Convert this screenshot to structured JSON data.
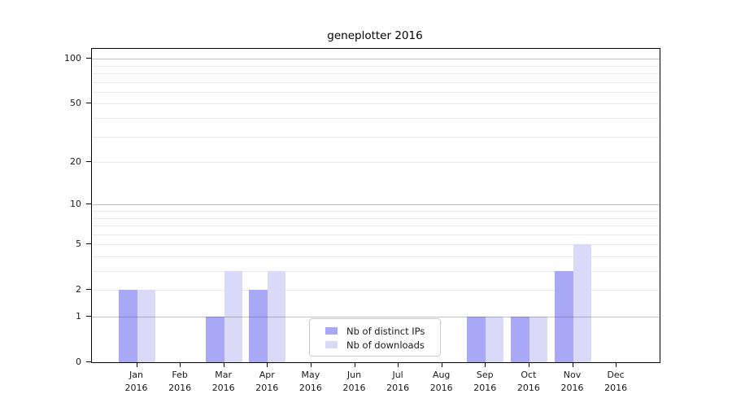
{
  "title": "geneplotter 2016",
  "chart_data": {
    "type": "bar",
    "title": "geneplotter 2016",
    "categories": [
      "Jan",
      "Feb",
      "Mar",
      "Apr",
      "May",
      "Jun",
      "Jul",
      "Aug",
      "Sep",
      "Oct",
      "Nov",
      "Dec"
    ],
    "category_year": "2016",
    "series": [
      {
        "name": "Nb of distinct IPs",
        "color": "#a8a8f6",
        "values": [
          2,
          0,
          1,
          2,
          0,
          0,
          0,
          0,
          1,
          1,
          3,
          0
        ]
      },
      {
        "name": "Nb of downloads",
        "color": "#d9d9f8",
        "values": [
          2,
          0,
          3,
          3,
          0,
          0,
          0,
          0,
          1,
          1,
          5,
          0
        ]
      }
    ],
    "xlabel": "",
    "ylabel": "",
    "y_scale": "log10(value+1)",
    "y_ticks": [
      0,
      1,
      2,
      5,
      10,
      20,
      50,
      100
    ],
    "y_max": 116.5,
    "major_gridlines": [
      1,
      10,
      100
    ],
    "minor_gridlines": [
      2,
      3,
      4,
      5,
      6,
      7,
      8,
      9,
      20,
      30,
      40,
      50,
      60,
      70,
      80,
      90
    ],
    "grid": true,
    "legend_position": "bottom-center-inside"
  },
  "legend": {
    "items": [
      {
        "label": "Nb of distinct IPs",
        "color": "#a8a8f6"
      },
      {
        "label": "Nb of downloads",
        "color": "#d9d9f8"
      }
    ]
  },
  "colors": {
    "background": "#ffffff",
    "axis": "#000000",
    "major_grid": "#b2b2b2",
    "minor_grid": "#e9e9e9",
    "text": "#1a1a1a",
    "legend_border": "#cccccc"
  }
}
